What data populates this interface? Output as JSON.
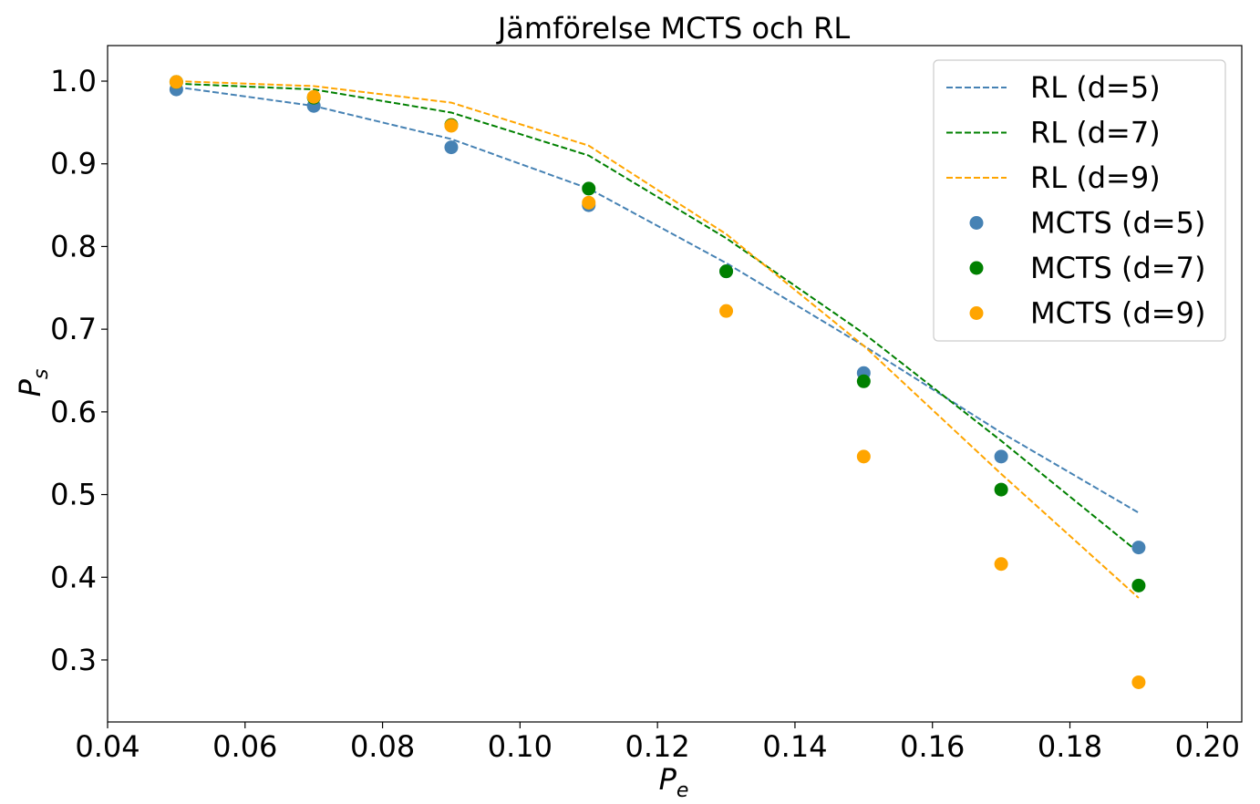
{
  "chart_data": {
    "type": "line",
    "title": "Jämförelse MCTS och RL",
    "xlabel": "P",
    "xlabel_sub": "e",
    "ylabel": "P",
    "ylabel_sub": "s",
    "xlim": [
      0.04,
      0.205
    ],
    "ylim": [
      0.225,
      1.043
    ],
    "xticks": [
      0.04,
      0.06,
      0.08,
      0.1,
      0.12,
      0.14,
      0.16,
      0.18,
      0.2
    ],
    "xtick_labels": [
      "0.04",
      "0.06",
      "0.08",
      "0.10",
      "0.12",
      "0.14",
      "0.16",
      "0.18",
      "0.20"
    ],
    "yticks": [
      0.3,
      0.4,
      0.5,
      0.6,
      0.7,
      0.8,
      0.9,
      1.0
    ],
    "ytick_labels": [
      "0.3",
      "0.4",
      "0.5",
      "0.6",
      "0.7",
      "0.8",
      "0.9",
      "1.0"
    ],
    "grid": false,
    "legend_position": "top-right",
    "x": [
      0.05,
      0.07,
      0.09,
      0.11,
      0.13,
      0.15,
      0.17,
      0.19
    ],
    "series": [
      {
        "name": "RL (d=5)",
        "kind": "line",
        "style": "dashed",
        "color": "#4682b4",
        "values": [
          0.993,
          0.97,
          0.93,
          0.87,
          0.78,
          0.68,
          0.575,
          0.478
        ]
      },
      {
        "name": "RL (d=7)",
        "kind": "line",
        "style": "dashed",
        "color": "#008000",
        "values": [
          0.997,
          0.99,
          0.962,
          0.91,
          0.81,
          0.695,
          0.565,
          0.43
        ]
      },
      {
        "name": "RL (d=9)",
        "kind": "line",
        "style": "dashed",
        "color": "#ffa500",
        "values": [
          1.0,
          0.994,
          0.974,
          0.922,
          0.815,
          0.68,
          0.525,
          0.375
        ]
      },
      {
        "name": "MCTS (d=5)",
        "kind": "scatter",
        "color": "#4682b4",
        "values": [
          0.99,
          0.97,
          0.92,
          0.85,
          0.77,
          0.647,
          0.546,
          0.436
        ]
      },
      {
        "name": "MCTS (d=7)",
        "kind": "scatter",
        "color": "#008000",
        "values": [
          0.999,
          0.98,
          0.947,
          0.87,
          0.77,
          0.637,
          0.506,
          0.39
        ]
      },
      {
        "name": "MCTS (d=9)",
        "kind": "scatter",
        "color": "#ffa500",
        "values": [
          0.999,
          0.981,
          0.946,
          0.853,
          0.722,
          0.546,
          0.416,
          0.273
        ]
      }
    ]
  }
}
